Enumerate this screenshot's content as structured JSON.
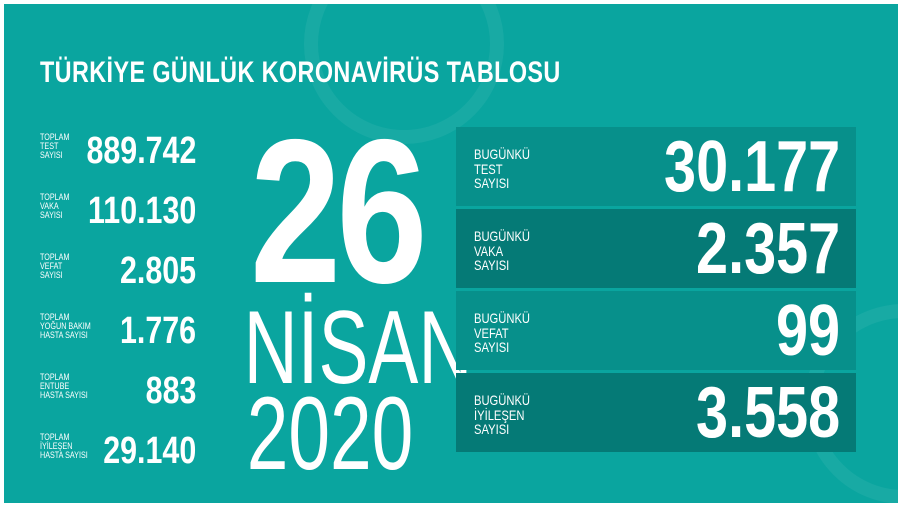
{
  "title": "TÜRKİYE GÜNLÜK KORONAVİRÜS TABLOSU",
  "colors": {
    "background": "#0aa59f",
    "panel_light": "#07908b",
    "panel_dark": "#057a76",
    "text": "#ffffff"
  },
  "totals": [
    {
      "label": "TOPLAM\nTEST\nSAYISI",
      "value": "889.742"
    },
    {
      "label": "TOPLAM\nVAKA\nSAYISI",
      "value": "110.130"
    },
    {
      "label": "TOPLAM\nVEFAT\nSAYISI",
      "value": "2.805"
    },
    {
      "label": "TOPLAM\nYOĞUN BAKIM\nHASTA SAYISI",
      "value": "1.776"
    },
    {
      "label": "TOPLAM\nENTUBE\nHASTA SAYISI",
      "value": "883"
    },
    {
      "label": "TOPLAM\nİYİLEŞEN\nHASTA SAYISI",
      "value": "29.140"
    }
  ],
  "date": {
    "day": "26",
    "month": "NİSAN",
    "year": "2020"
  },
  "today": [
    {
      "label": "BUGÜNKÜ\nTEST\nSAYISI",
      "value": "30.177"
    },
    {
      "label": "BUGÜNKÜ\nVAKA\nSAYISI",
      "value": "2.357"
    },
    {
      "label": "BUGÜNKÜ\nVEFAT\nSAYISI",
      "value": "99"
    },
    {
      "label": "BUGÜNKÜ\nİYİLEŞEN\nSAYISI",
      "value": "3.558"
    }
  ]
}
